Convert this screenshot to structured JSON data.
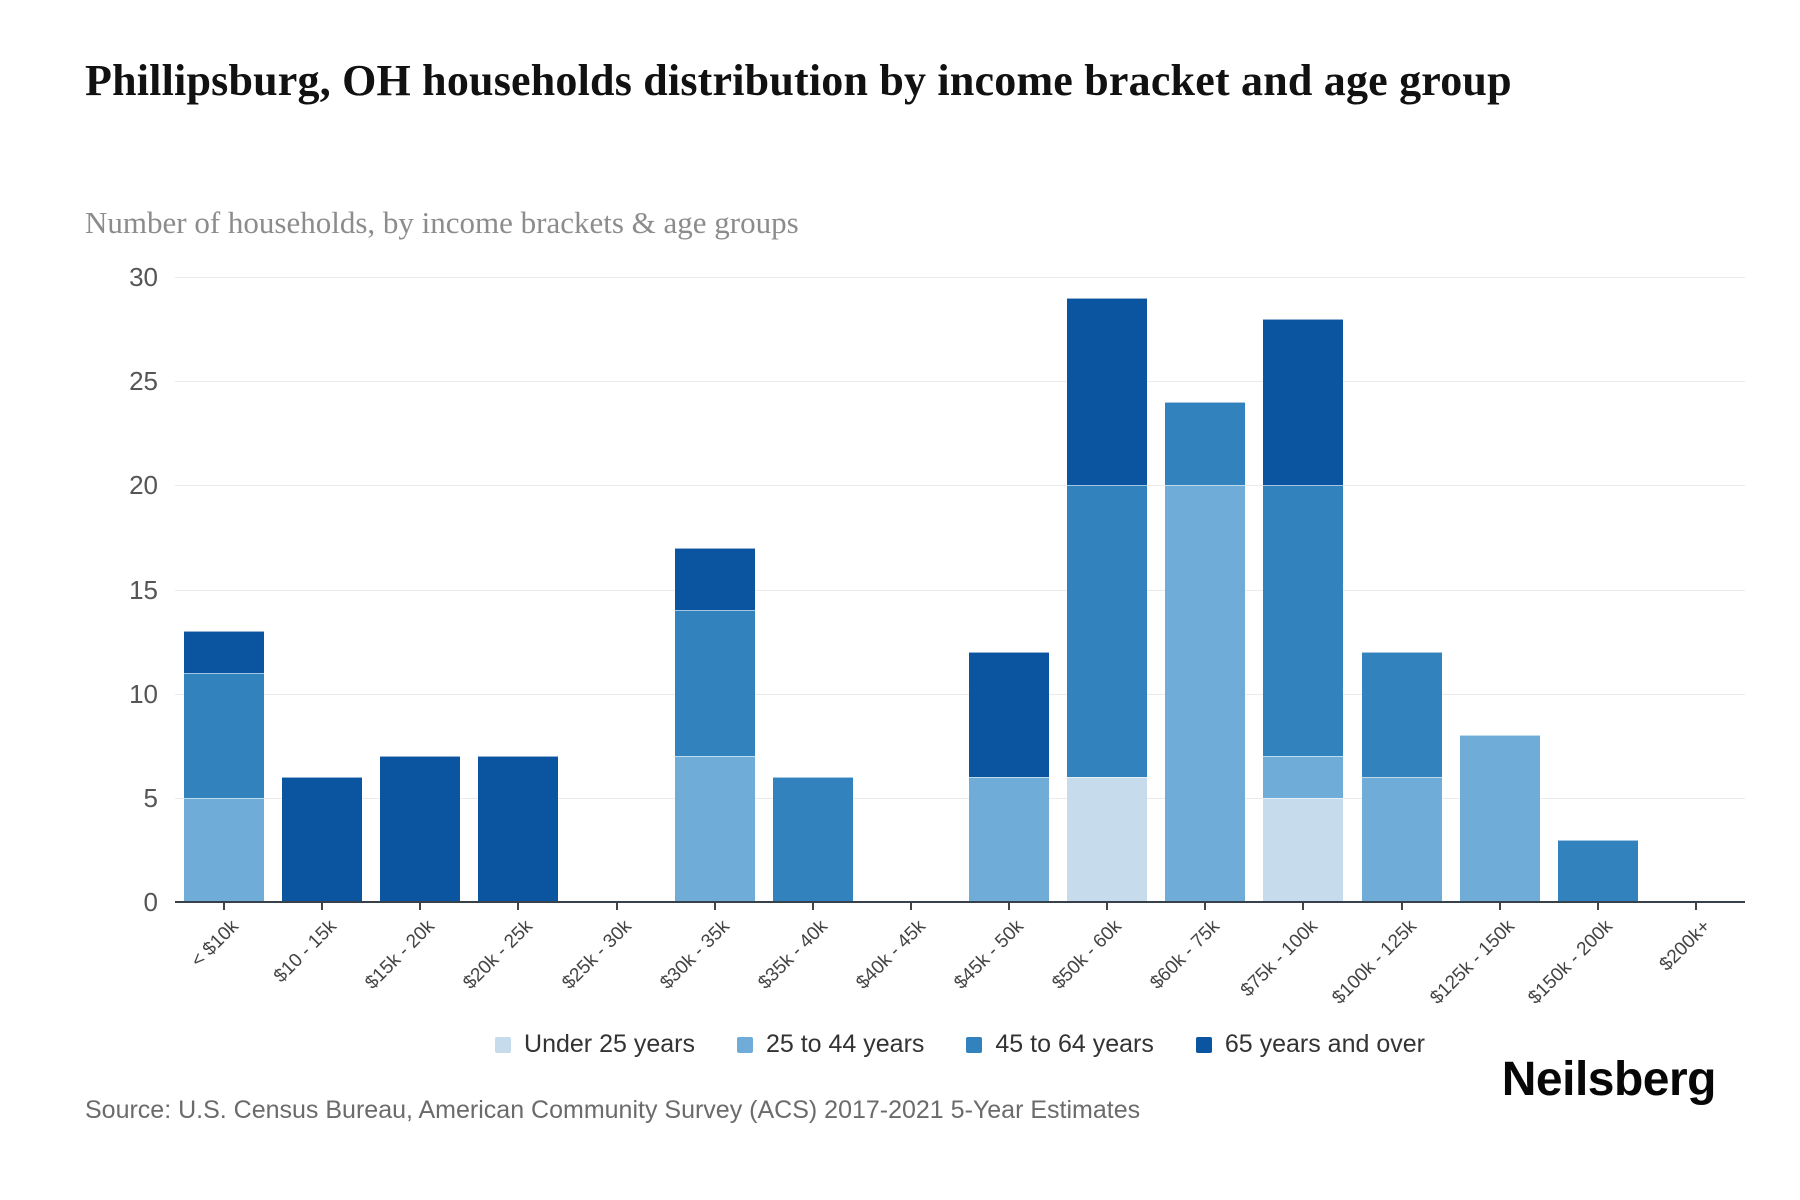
{
  "header": {
    "title": "Phillipsburg, OH households distribution by income bracket and age group",
    "subtitle": "Number of households, by income brackets & age groups"
  },
  "footer": {
    "source": "Source: U.S. Census Bureau, American Community Survey (ACS) 2017-2021 5-Year Estimates",
    "logo_text": "Neilsberg"
  },
  "colors": {
    "under_25": "#c6dbec",
    "age_25_44": "#6fadd8",
    "age_45_64": "#3182bd",
    "age_65_plus": "#0b55a0",
    "gridline": "#ebebeb",
    "axis": "#37414b"
  },
  "chart_data": {
    "type": "bar",
    "stacked": true,
    "title": "Phillipsburg, OH households distribution by income bracket and age group",
    "subtitle": "Number of households, by income brackets & age groups",
    "xlabel": "",
    "ylabel": "Number of households",
    "ylim": [
      0,
      30
    ],
    "yticks": [
      0,
      5,
      10,
      15,
      20,
      25,
      30
    ],
    "grid": true,
    "legend_position": "bottom",
    "categories": [
      "< $10k",
      "$10 - 15k",
      "$15k - 20k",
      "$20k - 25k",
      "$25k - 30k",
      "$30k - 35k",
      "$35k - 40k",
      "$40k - 45k",
      "$45k - 50k",
      "$50k - 60k",
      "$60k - 75k",
      "$75k - 100k",
      "$100k - 125k",
      "$125k - 150k",
      "$150k - 200k",
      "$200k+"
    ],
    "series": [
      {
        "name": "Under 25 years",
        "color": "#c6dbec",
        "values": [
          0,
          0,
          0,
          0,
          0,
          0,
          0,
          0,
          0,
          6,
          0,
          5,
          0,
          0,
          0,
          0
        ]
      },
      {
        "name": "25 to 44 years",
        "color": "#6fadd8",
        "values": [
          5,
          0,
          0,
          0,
          0,
          7,
          0,
          0,
          6,
          0,
          20,
          2,
          6,
          8,
          0,
          0
        ]
      },
      {
        "name": "45 to 64 years",
        "color": "#3182bd",
        "values": [
          6,
          0,
          0,
          0,
          0,
          7,
          6,
          0,
          0,
          14,
          4,
          13,
          6,
          0,
          3,
          0
        ]
      },
      {
        "name": "65 years and over",
        "color": "#0b55a0",
        "values": [
          2,
          6,
          7,
          7,
          0,
          3,
          0,
          0,
          6,
          9,
          0,
          8,
          0,
          0,
          0,
          0
        ]
      }
    ]
  }
}
